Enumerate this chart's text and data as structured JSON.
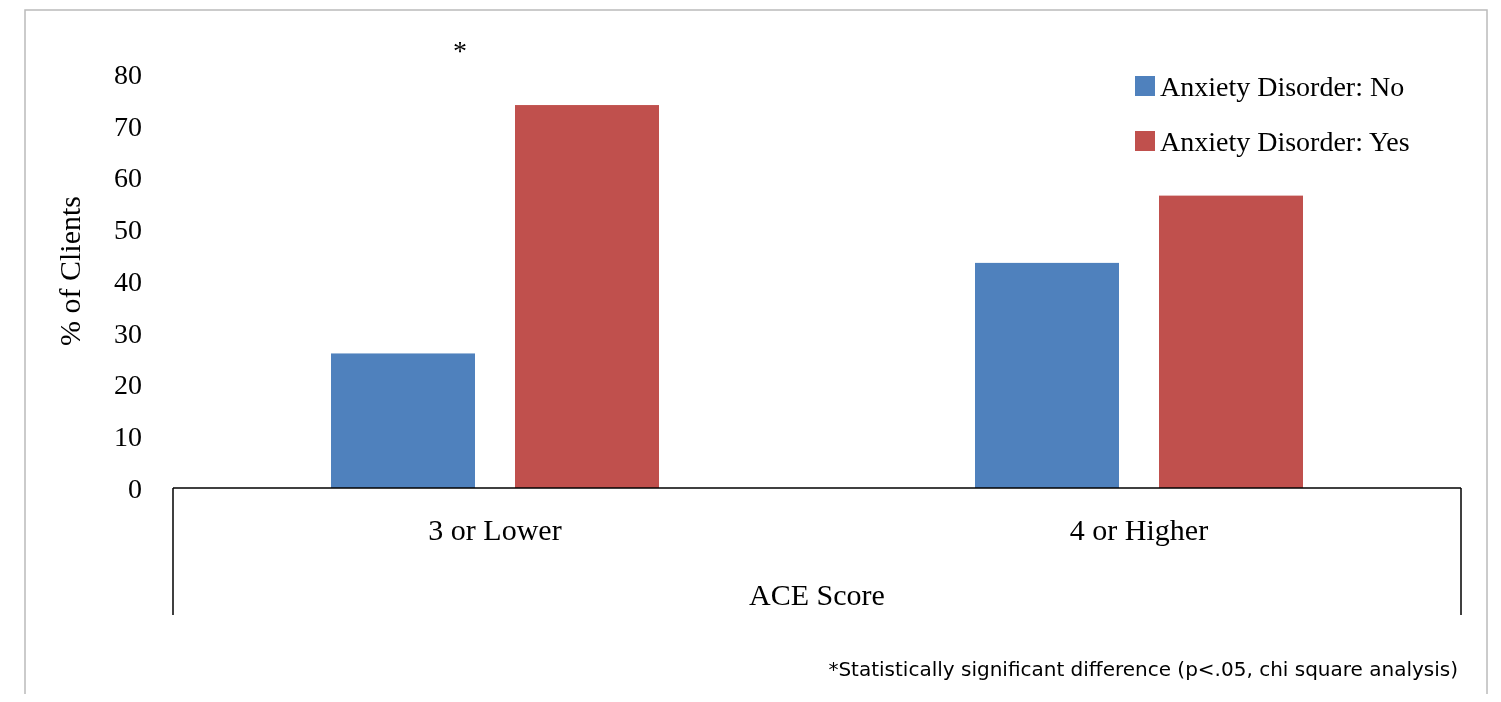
{
  "chart_data": {
    "type": "bar",
    "xlabel": "ACE Score",
    "ylabel": "% of Clients",
    "categories": [
      "3 or Lower",
      "4 or Higher"
    ],
    "series": [
      {
        "name": "Anxiety Disorder: No",
        "color": "#4f81bd",
        "values": [
          26,
          43.5
        ]
      },
      {
        "name": "Anxiety Disorder: Yes",
        "color": "#c0504d",
        "values": [
          74,
          56.5
        ]
      }
    ],
    "ylim": [
      0,
      80
    ],
    "yticks": [
      0,
      10,
      20,
      30,
      40,
      50,
      60,
      70,
      80
    ],
    "grid": false,
    "legend": "top right",
    "annotations": [
      "*",
      "*Statistically significant difference (p<.05, chi square analysis)"
    ]
  }
}
